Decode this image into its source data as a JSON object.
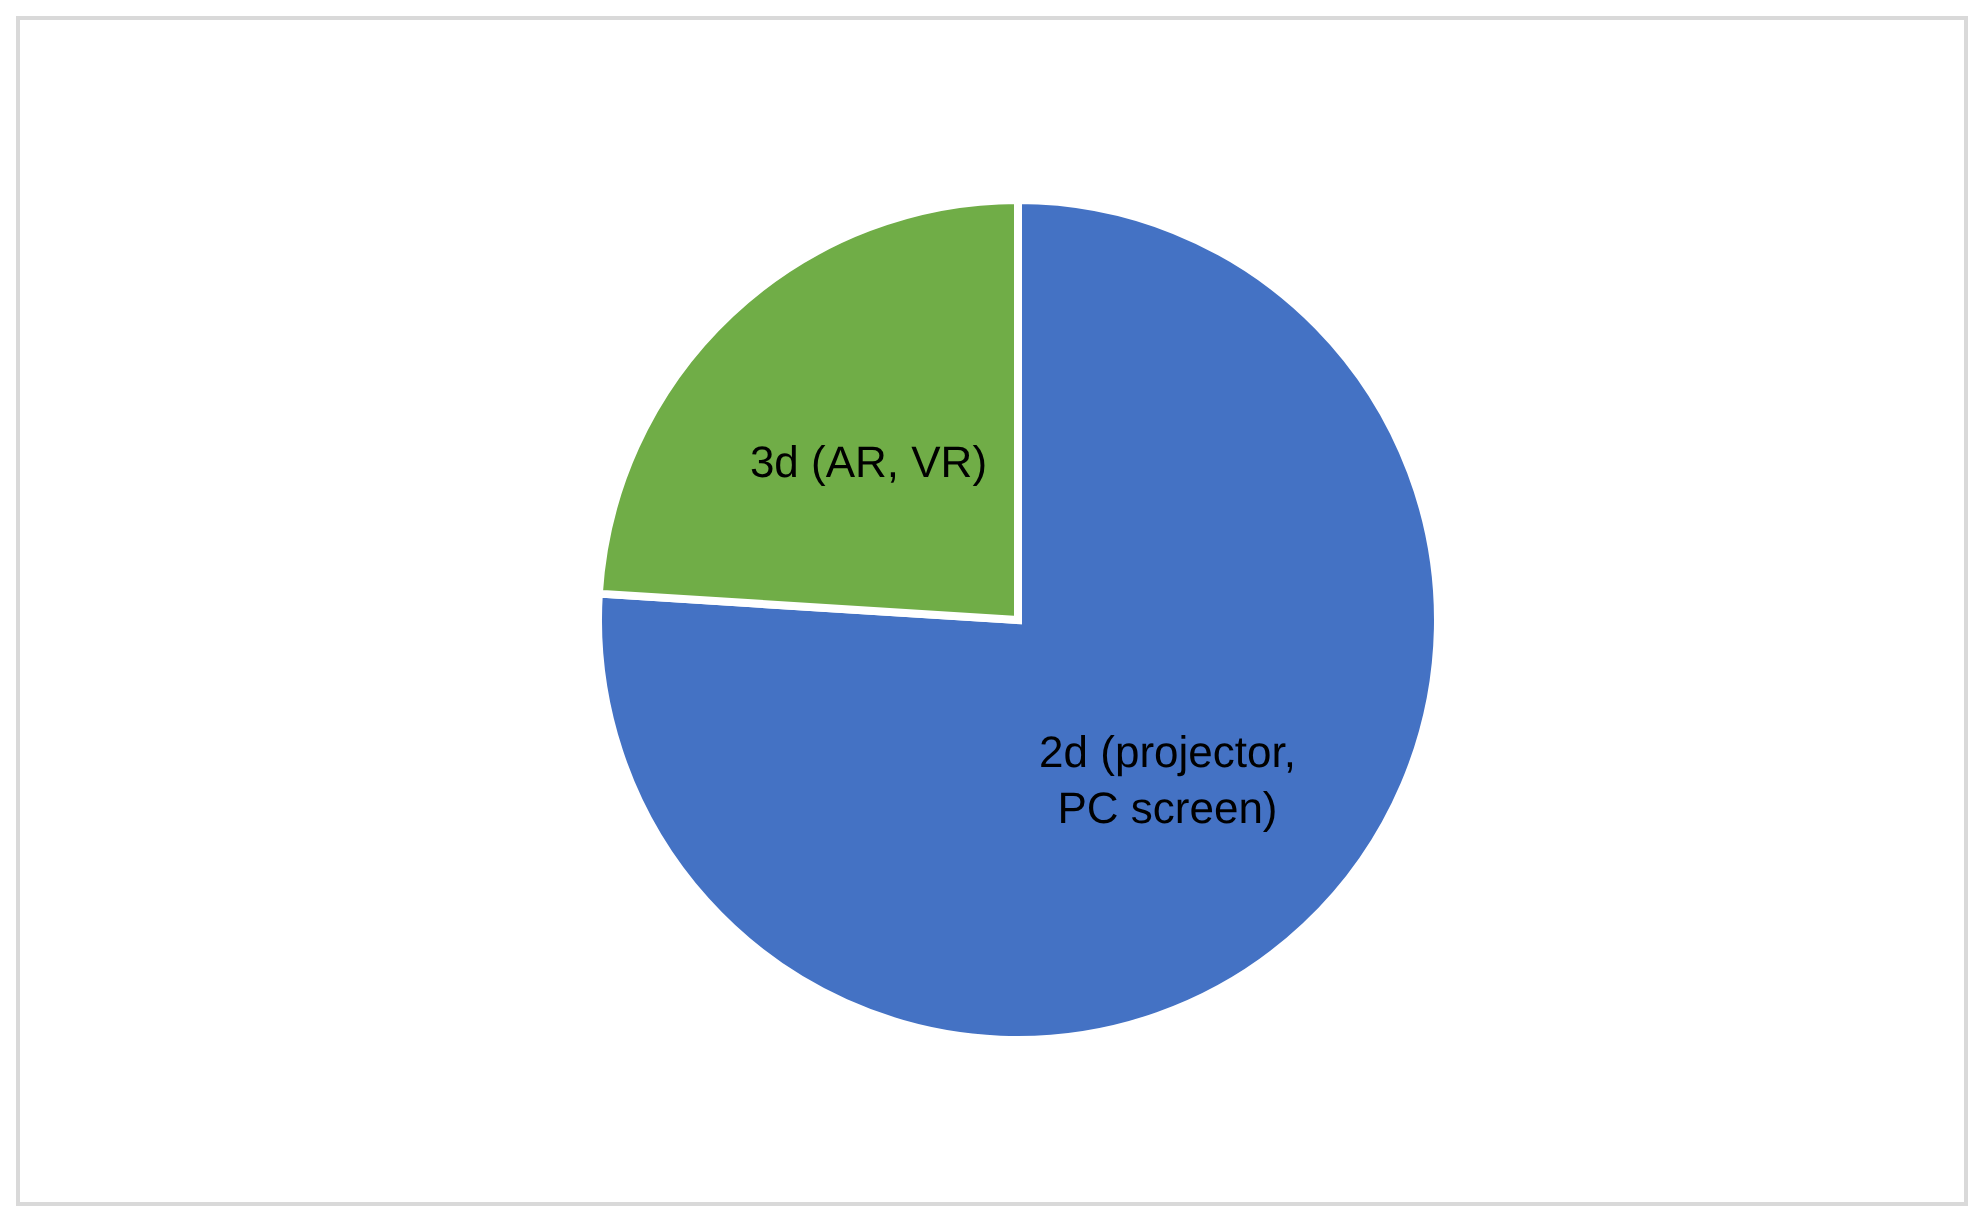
{
  "chart_data": {
    "type": "pie",
    "categories": [
      "2d (projector, PC screen)",
      "3d (AR, VR)"
    ],
    "values": [
      76,
      24
    ],
    "colors": [
      "#4472c4",
      "#70ad47"
    ],
    "legend": false
  }
}
